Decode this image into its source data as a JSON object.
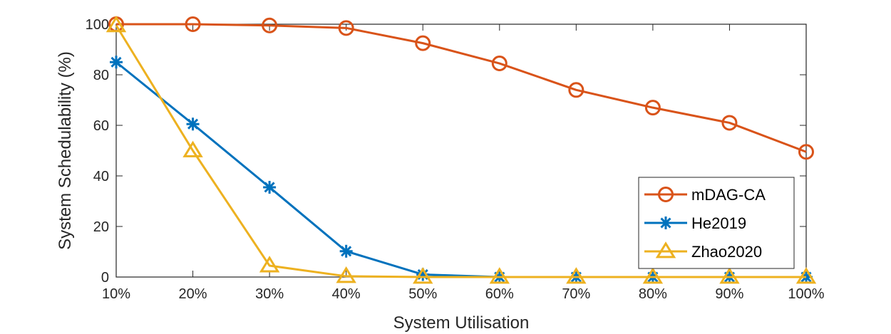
{
  "chart_data": {
    "type": "line",
    "categories": [
      "10%",
      "20%",
      "30%",
      "40%",
      "50%",
      "60%",
      "70%",
      "80%",
      "90%",
      "100%"
    ],
    "xlabel": "System Utilisation",
    "ylabel": "System Schedulability (%)",
    "ylim": [
      0,
      100
    ],
    "yticks": [
      0,
      20,
      40,
      60,
      80,
      100
    ],
    "grid": false,
    "legend_position": "bottom-right",
    "series": [
      {
        "name": "mDAG-CA",
        "color": "#D95319",
        "marker": "circle",
        "values": [
          100,
          100,
          99.5,
          98.5,
          92.5,
          84.5,
          74,
          67,
          61,
          49.5
        ]
      },
      {
        "name": "He2019",
        "color": "#0072BD",
        "marker": "asterisk",
        "values": [
          85,
          60.5,
          35.5,
          10.2,
          1,
          0,
          0,
          0,
          0,
          0
        ]
      },
      {
        "name": "Zhao2020",
        "color": "#EDB120",
        "marker": "triangle",
        "values": [
          99.5,
          50,
          4.5,
          0.3,
          0,
          0,
          0,
          0,
          0,
          0
        ]
      }
    ]
  }
}
